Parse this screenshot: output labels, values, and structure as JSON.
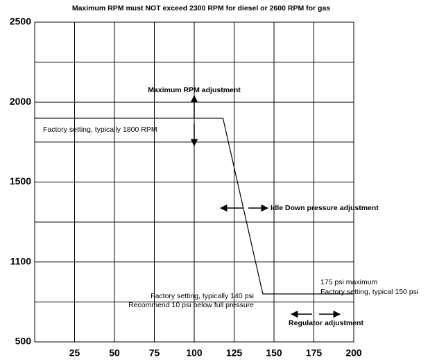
{
  "chart_data": {
    "type": "line",
    "title": "Maximum RPM must NOT exceed 2300 RPM for diesel or 2600 RPM for gas",
    "x": [
      0,
      118,
      143,
      200
    ],
    "series": [
      {
        "color": "#000000",
        "values": [
          1900,
          1900,
          860,
          860
        ]
      }
    ],
    "xlim": [
      0,
      200
    ],
    "xticks": [
      25,
      50,
      75,
      100,
      125,
      150,
      175,
      200
    ],
    "ylim": [
      500,
      2500
    ],
    "yticks": [
      500,
      1100,
      1500,
      2000,
      2500
    ],
    "grid": true,
    "minor_grid": true,
    "annotations": [
      "Maximum RPM adjustment",
      "Factory setting, typically 1800 RPM",
      "Idle Down pressure adjustment",
      "175 psi maximum",
      "Factory setting, typical 150 psi",
      "Factory setting, typically 140 psi",
      "Recommend 10 psi below full pressure",
      "Regulator adjustment"
    ]
  }
}
